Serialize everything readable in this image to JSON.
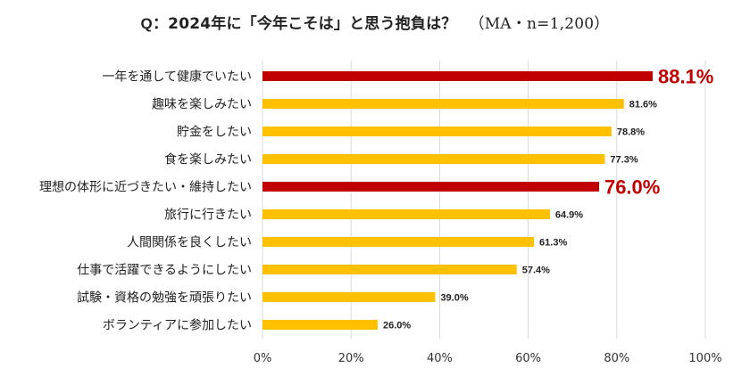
{
  "title": {
    "prefix": "Q：",
    "main": "2024年に「今年こそは」と思う抱負は？",
    "note": "（MA・n=1,200）"
  },
  "colors": {
    "highlight": "#c00000",
    "normal": "#ffc000",
    "grid": "#d9d9d9",
    "highlight_label": "#c00000",
    "normal_label": "#222222"
  },
  "chart_data": {
    "type": "bar",
    "orientation": "horizontal",
    "categories": [
      "一年を通して健康でいたい",
      "趣味を楽しみたい",
      "貯金をしたい",
      "食を楽しみたい",
      "理想の体形に近づきたい・維持したい",
      "旅行に行きたい",
      "人間関係を良くしたい",
      "仕事で活躍できるようにしたい",
      "試験・資格の勉強を頑張りたい",
      "ボランティアに参加したい"
    ],
    "values": [
      88.1,
      81.6,
      78.8,
      77.3,
      76.0,
      64.9,
      61.3,
      57.4,
      39.0,
      26.0
    ],
    "value_labels": [
      "88.1%",
      "81.6%",
      "78.8%",
      "77.3%",
      "76.0%",
      "64.9%",
      "61.3%",
      "57.4%",
      "39.0%",
      "26.0%"
    ],
    "highlighted": [
      true,
      false,
      false,
      false,
      true,
      false,
      false,
      false,
      false,
      false
    ],
    "xlim": [
      0,
      100
    ],
    "xticks": [
      0,
      20,
      40,
      60,
      80,
      100
    ],
    "xtick_labels": [
      "0%",
      "20%",
      "40%",
      "60%",
      "80%",
      "100%"
    ],
    "grid": true
  }
}
